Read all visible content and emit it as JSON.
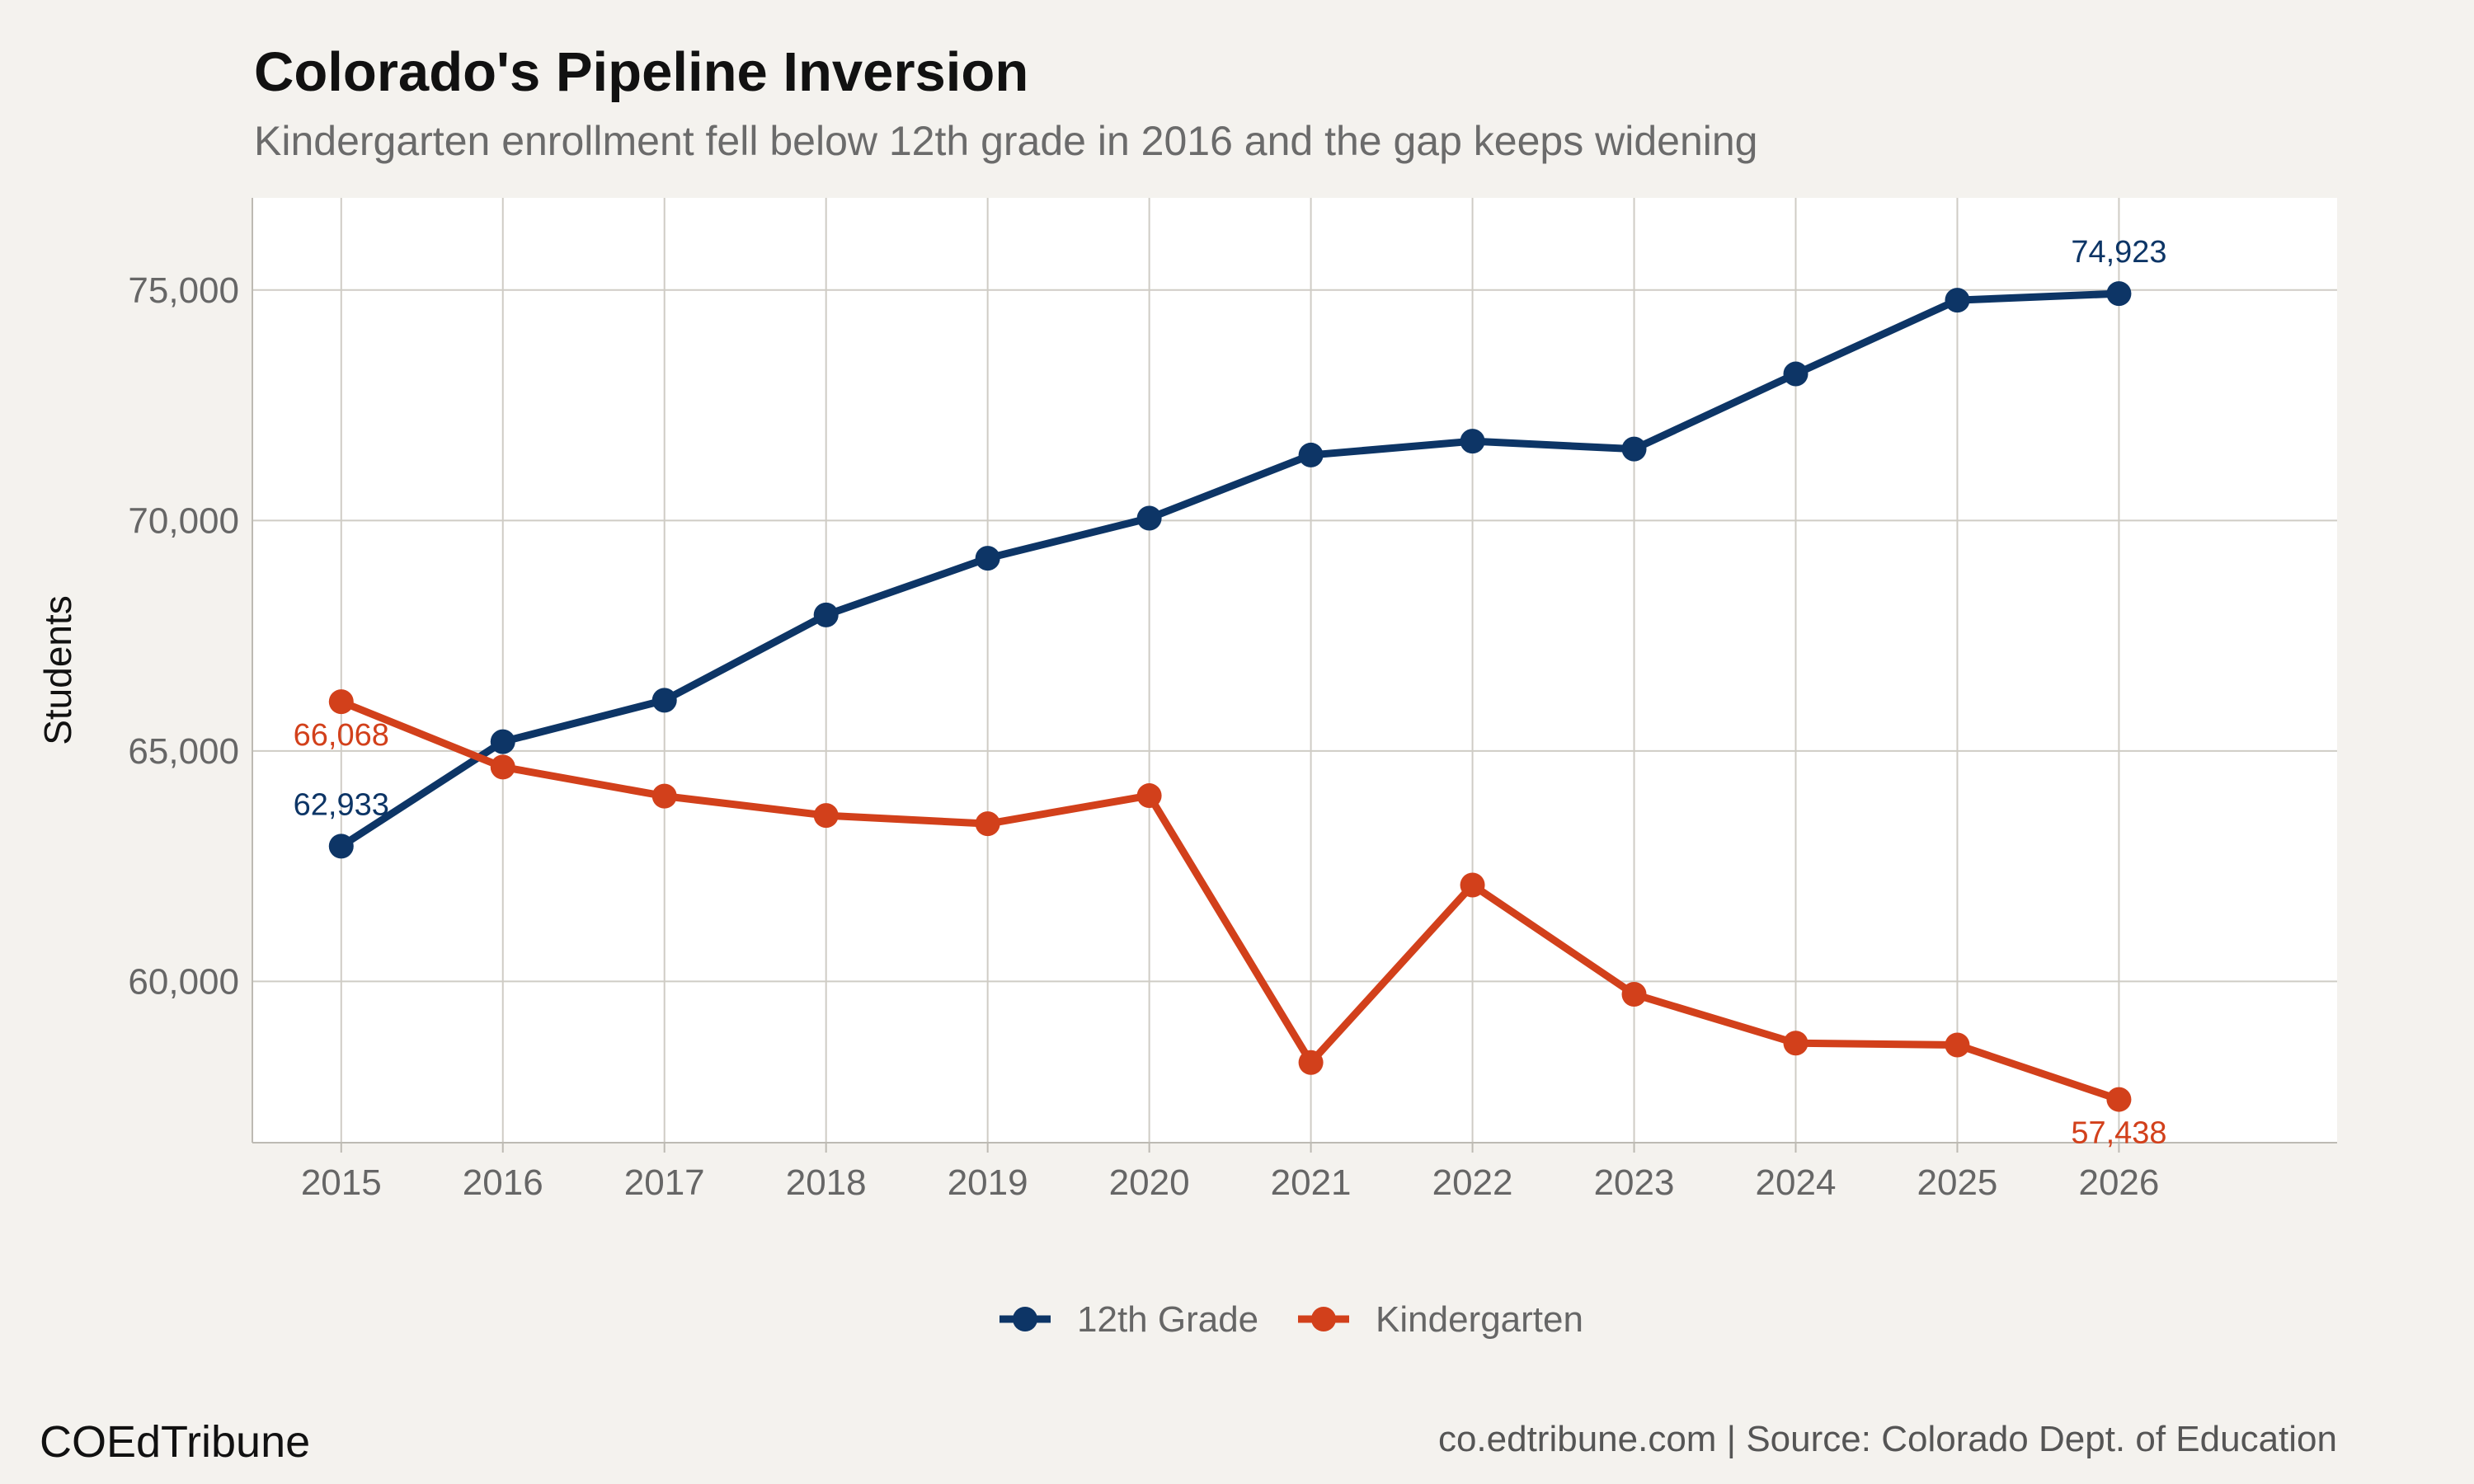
{
  "chart_data": {
    "type": "line",
    "title": "Colorado's Pipeline Inversion",
    "subtitle": "Kindergarten enrollment fell below 12th grade in 2016 and the gap keeps widening",
    "xlabel": "",
    "ylabel": "Students",
    "x": [
      2015,
      2016,
      2017,
      2018,
      2019,
      2020,
      2021,
      2022,
      2023,
      2024,
      2025,
      2026
    ],
    "xlim": [
      2014.45,
      2027.35
    ],
    "ylim": [
      56500,
      77000
    ],
    "yticks": [
      60000,
      65000,
      70000,
      75000
    ],
    "ytick_labels": [
      "60,000",
      "65,000",
      "70,000",
      "75,000"
    ],
    "grid": true,
    "legend_position": "bottom",
    "series": [
      {
        "name": "12th Grade",
        "color": "#0d3566",
        "values": [
          62933,
          65200,
          66100,
          67950,
          69180,
          70050,
          71420,
          71720,
          71550,
          73180,
          74780,
          74923
        ],
        "end_labels": {
          "first": "62,933",
          "last": "74,923"
        }
      },
      {
        "name": "Kindergarten",
        "color": "#d2401b",
        "values": [
          66068,
          64650,
          64020,
          63600,
          63420,
          64030,
          58240,
          62090,
          59720,
          58660,
          58620,
          57438
        ],
        "end_labels": {
          "first": "66,068",
          "last": "57,438"
        }
      }
    ]
  },
  "footer": {
    "brand": "COEdTribune",
    "source": "co.edtribune.com | Source: Colorado Dept. of Education"
  }
}
